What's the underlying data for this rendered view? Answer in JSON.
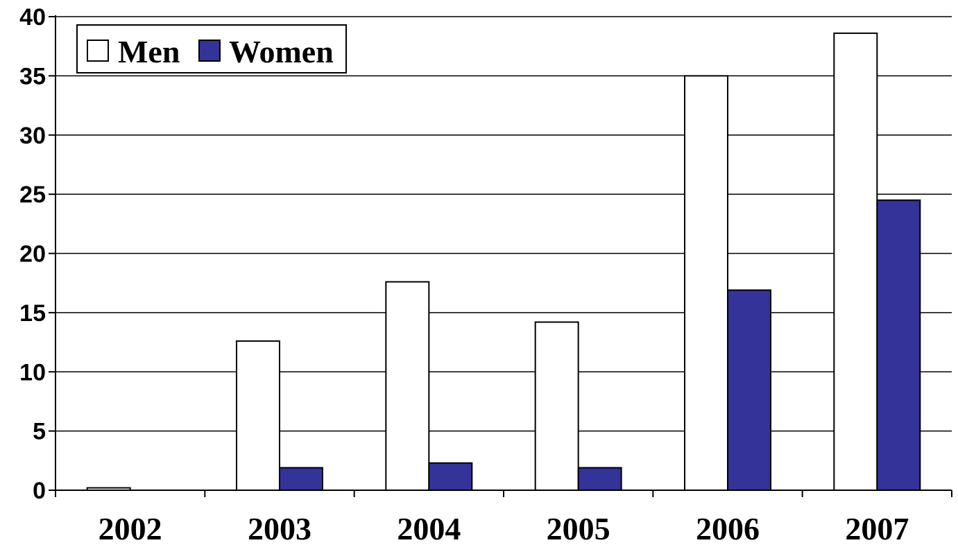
{
  "chart_data": {
    "type": "bar",
    "categories": [
      "2002",
      "2003",
      "2004",
      "2005",
      "2006",
      "2007"
    ],
    "series": [
      {
        "name": "Men",
        "color": "#ffffff",
        "values": [
          0.2,
          12.6,
          17.6,
          14.2,
          35.0,
          38.6
        ]
      },
      {
        "name": "Women",
        "color": "#333399",
        "values": [
          0,
          1.9,
          2.3,
          1.9,
          16.9,
          24.5
        ]
      }
    ],
    "ylim": [
      0,
      40
    ],
    "yticks": [
      "0",
      "5",
      "10",
      "15",
      "20",
      "25",
      "30",
      "35",
      "40"
    ],
    "grid": true,
    "legend_position": "top-left",
    "title": "",
    "xlabel": "",
    "ylabel": ""
  }
}
